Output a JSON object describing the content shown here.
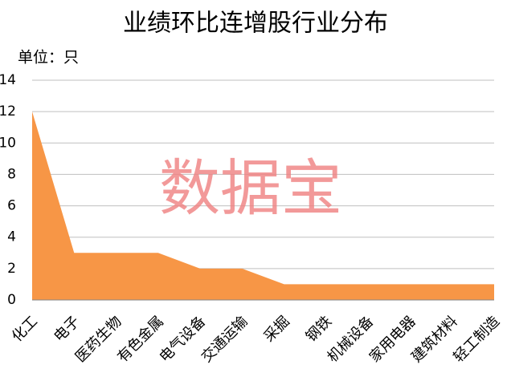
{
  "chart_data": {
    "type": "area",
    "title": "业绩环比连增股行业分布",
    "unit_label": "单位：只",
    "watermark": "数据宝",
    "categories": [
      "化工",
      "电子",
      "医药生物",
      "有色金属",
      "电气设备",
      "交通运输",
      "采掘",
      "钢铁",
      "机械设备",
      "家用电器",
      "建筑材料",
      "轻工制造"
    ],
    "values": [
      12,
      3,
      3,
      3,
      2,
      2,
      1,
      1,
      1,
      1,
      1,
      1
    ],
    "color": "#f79646",
    "ylim": [
      0,
      14
    ],
    "yticks": [
      0,
      2,
      4,
      6,
      8,
      10,
      12,
      14
    ],
    "grid": true
  }
}
